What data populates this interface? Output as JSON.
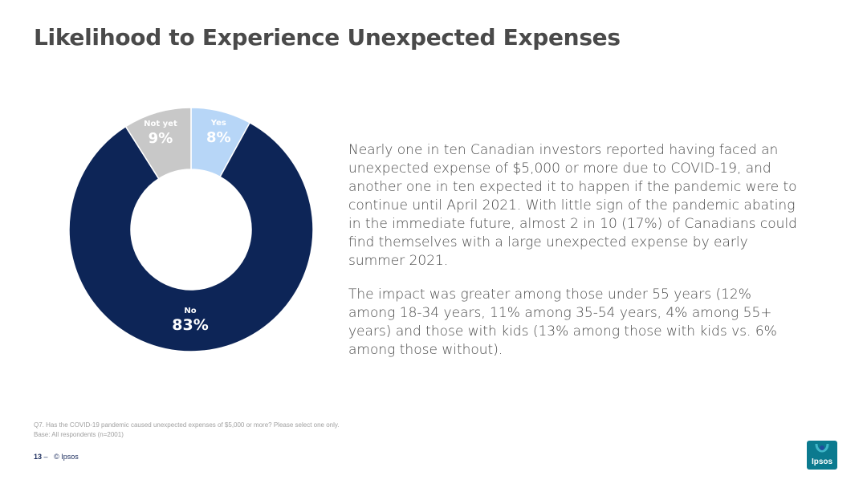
{
  "title": "Likelihood to Experience Unexpected Expenses",
  "chart_data": {
    "type": "pie",
    "title": "",
    "categories": [
      "Yes",
      "No",
      "Not yet"
    ],
    "values": [
      8,
      83,
      9
    ],
    "labels": [
      "8%",
      "83%",
      "9%"
    ],
    "colors": [
      "#b7d6f7",
      "#0d2557",
      "#c8c8c8"
    ],
    "legend": "none",
    "style": "donut"
  },
  "body": {
    "p1": "Nearly one in ten Canadian investors reported having faced an unexpected expense of $5,000 or more due to COVID-19, and another one in ten expected it to happen if the pandemic were to continue until April 2021. With little sign of the pandemic abating in the immediate future, almost 2 in 10 (17%) of Canadians could find themselves with a large unexpected expense by early summer 2021.",
    "p2": "The impact was greater among those under 55 years (12% among 18-34 years, 11% among 35-54 years, 4% among 55+ years) and those with kids (13% among those with kids vs. 6% among those without)."
  },
  "footnote": {
    "question": "Q7. Has the COVID-19 pandemic caused unexpected expenses of $5,000 or more? Please select one only.",
    "base": "Base: All respondents (n=2001)"
  },
  "footer": {
    "page_number": "13",
    "separator": "–",
    "copyright": "© Ipsos"
  },
  "logo": {
    "text": "Ipsos"
  }
}
